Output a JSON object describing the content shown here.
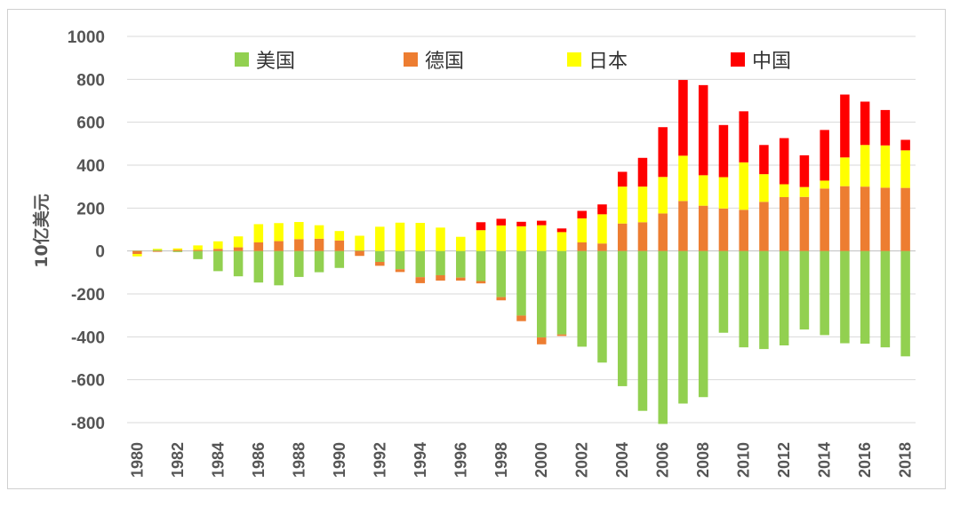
{
  "colors": {
    "usa": "#92d050",
    "germany": "#ed7d31",
    "japan": "#ffff00",
    "china": "#ff0000"
  },
  "chart_data": {
    "type": "bar",
    "stacked": true,
    "ylabel": "10亿美元",
    "ylim": [
      -800,
      1000
    ],
    "yticks": [
      "1000",
      "800",
      "600",
      "400",
      "200",
      "0",
      "-200",
      "-400",
      "-600",
      "-800"
    ],
    "ytick_values": [
      1000,
      800,
      600,
      400,
      200,
      0,
      -200,
      -400,
      -600,
      -800
    ],
    "grid": true,
    "legend_position": "top",
    "categories": [
      "1980",
      "1981",
      "1982",
      "1983",
      "1984",
      "1985",
      "1986",
      "1987",
      "1988",
      "1989",
      "1990",
      "1991",
      "1992",
      "1993",
      "1994",
      "1995",
      "1996",
      "1997",
      "1998",
      "1999",
      "2000",
      "2001",
      "2002",
      "2003",
      "2004",
      "2005",
      "2006",
      "2007",
      "2008",
      "2009",
      "2010",
      "2011",
      "2012",
      "2013",
      "2014",
      "2015",
      "2016",
      "2017",
      "2018"
    ],
    "xtick_labels": [
      "1980",
      "1982",
      "1984",
      "1986",
      "1988",
      "1990",
      "1992",
      "1994",
      "1996",
      "1998",
      "2000",
      "2002",
      "2004",
      "2006",
      "2008",
      "2010",
      "2012",
      "2014",
      "2016",
      "2018"
    ],
    "series": [
      {
        "name": "美国",
        "color_key": "usa",
        "values": [
          2,
          5,
          -5,
          -38,
          -94,
          -118,
          -147,
          -160,
          -121,
          -99,
          -79,
          3,
          -51,
          -85,
          -122,
          -113,
          -124,
          -140,
          -215,
          -301,
          -403,
          -389,
          -446,
          -520,
          -630,
          -745,
          -806,
          -711,
          -681,
          -381,
          -449,
          -457,
          -440,
          -366,
          -392,
          -430,
          -432,
          -449,
          -491
        ]
      },
      {
        "name": "德国",
        "color_key": "germany",
        "values": [
          -14,
          -4,
          5,
          5,
          10,
          17,
          40,
          46,
          55,
          57,
          49,
          -23,
          -18,
          -13,
          -28,
          -25,
          -14,
          -11,
          -15,
          -26,
          -32,
          -7,
          40,
          35,
          128,
          134,
          175,
          233,
          211,
          198,
          192,
          229,
          251,
          252,
          291,
          302,
          300,
          295,
          294
        ]
      },
      {
        "name": "日本",
        "color_key": "japan",
        "values": [
          -11,
          5,
          7,
          21,
          35,
          51,
          85,
          84,
          80,
          63,
          44,
          68,
          113,
          132,
          131,
          109,
          66,
          97,
          119,
          115,
          120,
          88,
          112,
          136,
          172,
          166,
          170,
          211,
          142,
          146,
          221,
          129,
          60,
          46,
          37,
          134,
          194,
          197,
          175
        ]
      },
      {
        "name": "中国",
        "color_key": "china",
        "values": [
          0,
          0,
          0,
          0,
          0,
          0,
          0,
          0,
          0,
          0,
          0,
          0,
          0,
          0,
          0,
          0,
          0,
          37,
          31,
          21,
          21,
          17,
          35,
          46,
          69,
          134,
          232,
          353,
          420,
          243,
          238,
          136,
          215,
          148,
          236,
          293,
          202,
          165,
          49
        ]
      }
    ]
  }
}
